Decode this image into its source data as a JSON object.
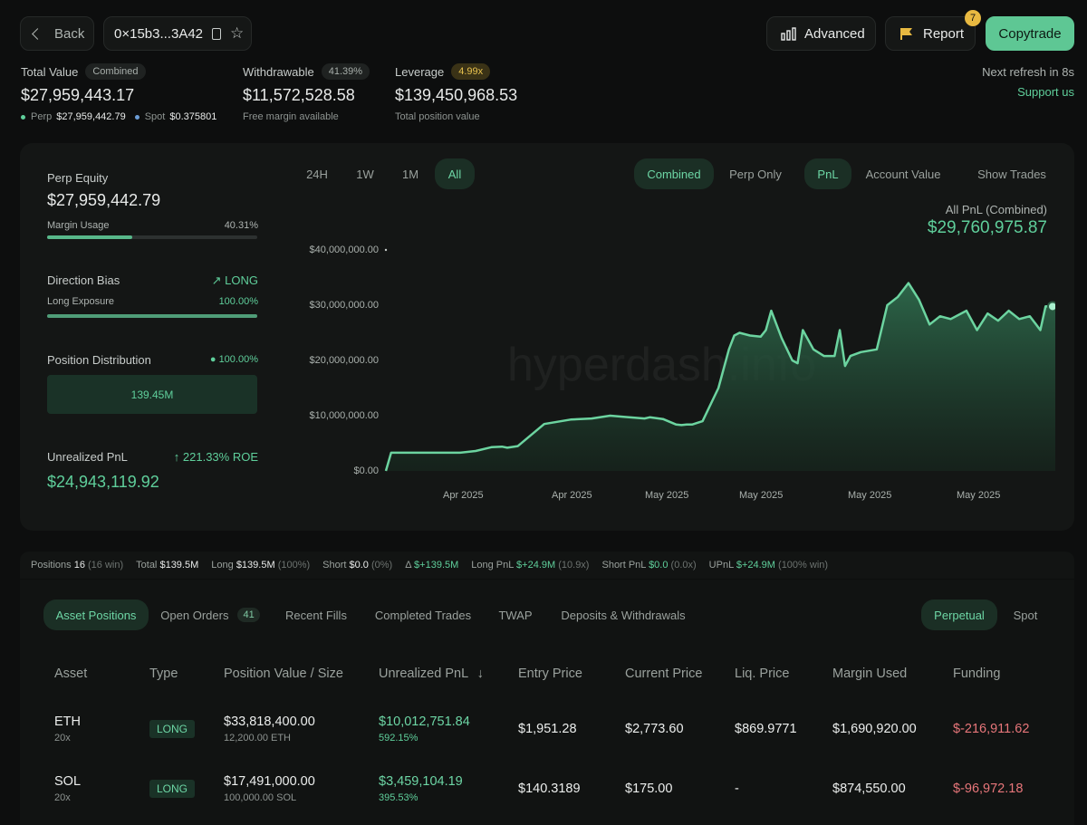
{
  "header": {
    "back_label": "Back",
    "address": "0×15b3...3A42",
    "advanced_label": "Advanced",
    "report_label": "Report",
    "report_badge": "7",
    "copytrade_label": "Copytrade",
    "refresh_text": "Next refresh in 8s",
    "support_label": "Support us"
  },
  "summary": {
    "total_value_label": "Total Value",
    "total_value_chip": "Combined",
    "total_value": "$27,959,443.17",
    "perp_label": "Perp",
    "perp_value": "$27,959,442.79",
    "spot_label": "Spot",
    "spot_value": "$0.375801",
    "withdrawable_label": "Withdrawable",
    "withdrawable_chip": "41.39%",
    "withdrawable_value": "$11,572,528.58",
    "withdrawable_sub": "Free margin available",
    "leverage_label": "Leverage",
    "leverage_chip": "4.99x",
    "leverage_value": "$139,450,968.53",
    "leverage_sub": "Total position value"
  },
  "left_panel": {
    "perp_equity_label": "Perp Equity",
    "perp_equity_value": "$27,959,442.79",
    "margin_usage_label": "Margin Usage",
    "margin_usage_value": "40.31%",
    "margin_usage_fraction": 0.4031,
    "direction_bias_label": "Direction Bias",
    "direction_bias_value": "LONG",
    "long_exposure_label": "Long Exposure",
    "long_exposure_value": "100.00%",
    "long_exposure_fraction": 1.0,
    "position_distribution_label": "Position Distribution",
    "position_distribution_pct": "100.00%",
    "position_distribution_value": "139.45M",
    "unrealized_label": "Unrealized PnL",
    "unrealized_roe": "221.33% ROE",
    "unrealized_value": "$24,943,119.92"
  },
  "chart_controls": {
    "ranges": [
      "24H",
      "1W",
      "1M",
      "All"
    ],
    "active_range": "All",
    "modes": [
      "Combined",
      "Perp Only"
    ],
    "views": [
      "PnL",
      "Account Value"
    ],
    "show_trades": "Show Trades",
    "summary_label": "All PnL (Combined)",
    "summary_value": "$29,760,975.87",
    "watermark": "hyperdash.info"
  },
  "chart_data": {
    "type": "area",
    "title": "All PnL (Combined)",
    "y_ticks": [
      "$40,000,000.00",
      "$30,000,000.00",
      "$20,000,000.00",
      "$10,000,000.00",
      "$0.00"
    ],
    "x_ticks": [
      "Apr 2025",
      "Apr 2025",
      "May 2025",
      "May 2025",
      "May 2025",
      "May 2025"
    ],
    "ylim": [
      0,
      40000000
    ],
    "colors": {
      "line": "#6cd4a0",
      "fill": "#2e6a4c"
    },
    "x": [
      0,
      0.02,
      0.1,
      0.2,
      0.28,
      0.34,
      0.4,
      0.44,
      0.46,
      0.5,
      0.6,
      0.7,
      0.78,
      0.85,
      0.9,
      0.98,
      1.0,
      1.05,
      1.1,
      1.12,
      1.14,
      1.16,
      1.2,
      1.26,
      1.3,
      1.32,
      1.34,
      1.38,
      1.42,
      1.44,
      1.46,
      1.5,
      1.54,
      1.56,
      1.58,
      1.62,
      1.66,
      1.7,
      1.72,
      1.74,
      1.76,
      1.8,
      1.86,
      1.9,
      1.94,
      1.98,
      2.02,
      2.06,
      2.1,
      2.14,
      2.2,
      2.24,
      2.28,
      2.32,
      2.36,
      2.4,
      2.44,
      2.48,
      2.5,
      2.54
    ],
    "values": [
      0,
      3300000,
      3300000,
      3300000,
      3300000,
      3600000,
      4300000,
      4400000,
      4200000,
      4500000,
      8500000,
      9300000,
      9500000,
      10000000,
      9800000,
      9500000,
      9700000,
      9400000,
      8400000,
      8300000,
      8400000,
      8400000,
      9000000,
      15000000,
      22000000,
      24500000,
      25000000,
      24500000,
      24300000,
      25500000,
      29000000,
      24000000,
      20000000,
      19500000,
      25500000,
      22000000,
      20800000,
      20800000,
      25500000,
      19000000,
      20800000,
      21500000,
      22000000,
      30000000,
      31500000,
      34000000,
      31000000,
      26500000,
      28000000,
      27500000,
      29000000,
      25500000,
      28500000,
      27200000,
      29000000,
      27500000,
      28000000,
      25500000,
      29800000,
      29760975
    ]
  },
  "stats_strip": {
    "positions_label": "Positions",
    "positions_value": "16",
    "positions_sub": "(16 win)",
    "total_label": "Total",
    "total_value": "$139.5M",
    "long_label": "Long",
    "long_value": "$139.5M",
    "long_sub": "(100%)",
    "short_label": "Short",
    "short_value": "$0.0",
    "short_sub": "(0%)",
    "delta_label": "Δ",
    "delta_value": "$+139.5M",
    "long_pnl_label": "Long PnL",
    "long_pnl_value": "$+24.9M",
    "long_pnl_sub": "(10.9x)",
    "short_pnl_label": "Short PnL",
    "short_pnl_value": "$0.0",
    "short_pnl_sub": "(0.0x)",
    "upnl_label": "UPnL",
    "upnl_value": "$+24.9M",
    "upnl_sub": "(100% win)"
  },
  "tabs": {
    "asset_positions": "Asset Positions",
    "open_orders": "Open Orders",
    "open_orders_count": "41",
    "recent_fills": "Recent Fills",
    "completed_trades": "Completed Trades",
    "twap": "TWAP",
    "deposits": "Deposits & Withdrawals",
    "perpetual": "Perpetual",
    "spot": "Spot"
  },
  "table": {
    "headers": {
      "asset": "Asset",
      "type": "Type",
      "position_value": "Position Value / Size",
      "unrealized": "Unrealized PnL",
      "entry": "Entry Price",
      "current": "Current Price",
      "liq": "Liq. Price",
      "margin": "Margin Used",
      "funding": "Funding"
    },
    "rows": [
      {
        "asset": "ETH",
        "leverage": "20x",
        "type": "LONG",
        "value": "$33,818,400.00",
        "size": "12,200.00 ETH",
        "pnl": "$10,012,751.84",
        "pnl_pct": "592.15%",
        "entry": "$1,951.28",
        "current": "$2,773.60",
        "liq": "$869.9771",
        "margin": "$1,690,920.00",
        "funding": "$-216,911.62"
      },
      {
        "asset": "SOL",
        "leverage": "20x",
        "type": "LONG",
        "value": "$17,491,000.00",
        "size": "100,000.00 SOL",
        "pnl": "$3,459,104.19",
        "pnl_pct": "395.53%",
        "entry": "$140.3189",
        "current": "$175.00",
        "liq": "-",
        "margin": "$874,550.00",
        "funding": "$-96,972.18"
      }
    ]
  }
}
